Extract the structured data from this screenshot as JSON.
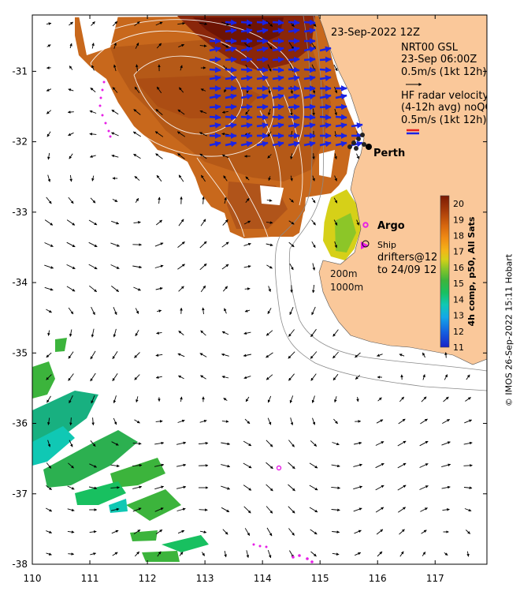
{
  "map": {
    "timestamp": "23-Sep-2022 12Z",
    "lon_ticks": [
      "110",
      "111",
      "112",
      "113",
      "114",
      "115",
      "116",
      "117"
    ],
    "lat_ticks": [
      "-31",
      "-32",
      "-33",
      "-34",
      "-35",
      "-36",
      "-37",
      "-38"
    ],
    "lon_range": [
      110,
      117.9
    ],
    "lat_range": [
      -38,
      -30.2
    ],
    "isobaths": [
      "200m",
      "1000m"
    ],
    "places": [
      {
        "name": "Perth",
        "lon": 115.86,
        "lat": -31.95
      }
    ],
    "colors": {
      "land": "#fac89a",
      "coast_line": "#888888",
      "radar_arrow": "#1a23e6",
      "wind_arrow": "#000000",
      "argo": "#e61ee6",
      "drifter": "#e61ee6"
    }
  },
  "legend": {
    "gsl_title": "NRT00 GSL",
    "gsl_time": "23-Sep 06:00Z",
    "gsl_scale": "0.5m/s (1kt 12h)",
    "radar_title": "HF radar velocity",
    "radar_avg": "(4-12h avg) noQC",
    "radar_scale": "0.5m/s (1kt 12h)",
    "argo": "Argo",
    "ship": "Ship",
    "drifters_line1": "drifters@12",
    "drifters_line2": "to 24/09 12"
  },
  "colorbar": {
    "title": "4h comp, p50, All Sats",
    "ticks": [
      "20",
      "19",
      "18",
      "17",
      "16",
      "15",
      "14",
      "13",
      "12",
      "11"
    ],
    "min": 11,
    "max": 20.5,
    "colors": [
      "#1a22c8",
      "#1560e0",
      "#13a8e8",
      "#10c8b4",
      "#18c060",
      "#3cb43c",
      "#8cc628",
      "#d6d018",
      "#f4b418",
      "#f08c14",
      "#d8680f",
      "#a83c0a",
      "#7a1a04"
    ]
  },
  "credit": "© IMOS 26-Sep-2022 15:11 Hobart"
}
